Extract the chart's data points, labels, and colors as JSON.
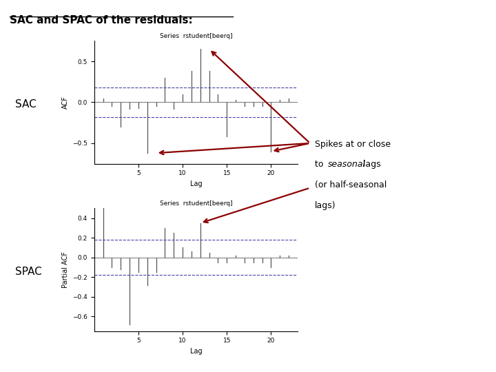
{
  "title": "SAC and SPAC of the residuals:",
  "sac_title": "Series  rstudent[beerq]",
  "spac_title": "Series  rstudent[beerq]",
  "sac_ylabel": "ACF",
  "spac_ylabel": "Partial ACF",
  "xlabel": "Lag",
  "sac_lags": [
    1,
    2,
    3,
    4,
    5,
    6,
    7,
    8,
    9,
    10,
    11,
    12,
    13,
    14,
    15,
    16,
    17,
    18,
    19,
    20,
    21,
    22
  ],
  "sac_values": [
    0.05,
    -0.05,
    -0.3,
    -0.08,
    -0.07,
    -0.62,
    -0.05,
    0.3,
    -0.08,
    0.1,
    0.38,
    0.65,
    0.38,
    0.1,
    -0.42,
    0.03,
    -0.05,
    -0.05,
    -0.05,
    -0.6,
    0.03,
    0.05
  ],
  "sac_ylim": [
    -0.75,
    0.75
  ],
  "sac_yticks": [
    -0.5,
    0.0,
    0.5
  ],
  "sac_ci": 0.18,
  "spac_lags": [
    1,
    2,
    3,
    4,
    5,
    6,
    7,
    8,
    9,
    10,
    11,
    12,
    13,
    14,
    15,
    16,
    17,
    18,
    19,
    20,
    21,
    22
  ],
  "spac_values": [
    0.65,
    -0.1,
    -0.12,
    -0.68,
    -0.15,
    -0.28,
    -0.15,
    0.3,
    0.25,
    0.1,
    0.06,
    0.35,
    0.05,
    -0.05,
    -0.05,
    0.02,
    -0.05,
    -0.05,
    -0.05,
    -0.1,
    0.02,
    0.02
  ],
  "spac_ylim": [
    -0.75,
    0.5
  ],
  "spac_yticks": [
    -0.6,
    -0.4,
    -0.2,
    0.0,
    0.2,
    0.4
  ],
  "spac_ci": 0.18,
  "arrow_color": "#8B0000",
  "background_color": "#ffffff",
  "bar_color": "#555555",
  "ci_color": "#4444aa"
}
